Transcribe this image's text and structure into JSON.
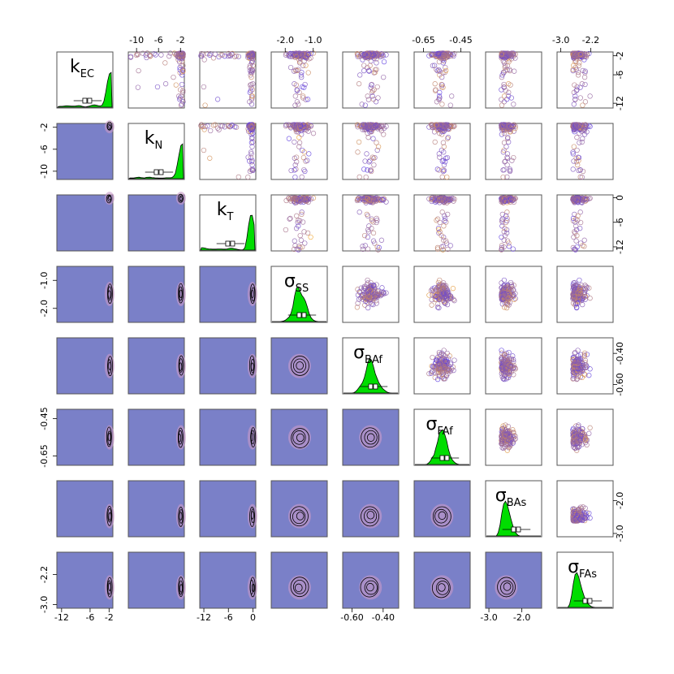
{
  "chart_data": {
    "type": "scatter",
    "layout": "pairs-matrix",
    "variables": [
      {
        "id": "kEC",
        "sym": "k",
        "sub": "EC",
        "range": [
          -13,
          -1.2
        ],
        "ticks": [
          -12,
          -6,
          -2
        ],
        "tick_labels": [
          "-12",
          "-6",
          "-2"
        ]
      },
      {
        "id": "kN",
        "sym": "k",
        "sub": "N",
        "range": [
          -11.5,
          -1.3
        ],
        "ticks": [
          -10,
          -6,
          -2
        ],
        "tick_labels": [
          "-10",
          "-6",
          "-2"
        ]
      },
      {
        "id": "kT",
        "sym": "k",
        "sub": "T",
        "range": [
          -13,
          0.7
        ],
        "ticks": [
          -12,
          -6,
          0
        ],
        "tick_labels": [
          "-12",
          "-6",
          "0"
        ]
      },
      {
        "id": "sSS",
        "sym": "σ",
        "sub": "SS",
        "range": [
          -2.5,
          -0.5
        ],
        "ticks": [
          -2.0,
          -1.0
        ],
        "tick_labels": [
          "-2.0",
          "-1.0"
        ]
      },
      {
        "id": "sBAf",
        "sym": "σ",
        "sub": "BAf",
        "range": [
          -0.66,
          -0.3
        ],
        "ticks": [
          -0.6,
          -0.4
        ],
        "tick_labels": [
          "-0.60",
          "-0.40"
        ]
      },
      {
        "id": "sFAf",
        "sym": "σ",
        "sub": "FAf",
        "range": [
          -0.7,
          -0.4
        ],
        "ticks": [
          -0.65,
          -0.45
        ],
        "tick_labels": [
          "-0.65",
          "-0.45"
        ]
      },
      {
        "id": "sBAs",
        "sym": "σ",
        "sub": "BAs",
        "range": [
          -3.1,
          -1.4
        ],
        "ticks": [
          -3.0,
          -2.0
        ],
        "tick_labels": [
          "-3.0",
          "-2.0"
        ]
      },
      {
        "id": "sFAs",
        "sym": "σ",
        "sub": "FAs",
        "range": [
          -3.1,
          -1.6
        ],
        "ticks": [
          -3.0,
          -2.2
        ],
        "tick_labels": [
          "-3.0",
          "-2.2"
        ]
      }
    ],
    "axis_labels": {
      "bottom": [
        0,
        2,
        4,
        6
      ],
      "top": [
        1,
        3,
        5,
        7
      ],
      "left": [
        1,
        3,
        5,
        7
      ],
      "right": [
        0,
        2,
        4,
        6
      ]
    },
    "upper_panels": "scatter",
    "lower_panels": "2d-density-contour",
    "diagonal_panels": "density",
    "colors": {
      "density_fill": "#00dd00",
      "density_bg": "#7a80c8",
      "point_low": "#6040e0",
      "point_high": "#ffb020",
      "contour": "#000000",
      "frame": "#555555"
    },
    "grid": false,
    "legend": "none"
  }
}
